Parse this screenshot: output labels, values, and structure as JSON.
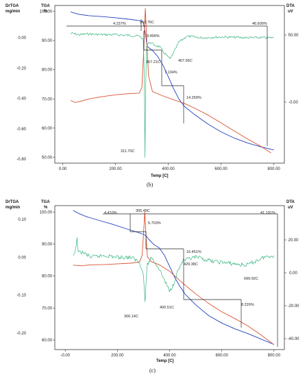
{
  "chart_data": [
    {
      "type": "line",
      "caption": "(b)",
      "axis_labels": {
        "drtga": "DrTGA",
        "drtga_unit": "mg/min",
        "tga": "TGA",
        "tga_unit": "%",
        "dta": "DTA",
        "dta_unit": "uV",
        "x": "Temp [C]"
      },
      "x_ticks": [
        "0.00",
        "200.00",
        "400.00",
        "600.00",
        "800.00"
      ],
      "x_tick_values": [
        0,
        200,
        400,
        600,
        800
      ],
      "xlim": [
        -30,
        840
      ],
      "tga_ticks": [
        "100.00",
        "90.00",
        "80.00",
        "70.00",
        "60.00",
        "50.00"
      ],
      "tga_tick_values": [
        100,
        90,
        80,
        70,
        60,
        50
      ],
      "tga_lim": [
        48,
        102
      ],
      "drtga_ticks": [
        "0.00",
        "-0.20",
        "-0.40",
        "-0.60",
        "-0.80"
      ],
      "drtga_tick_values": [
        0.0,
        -0.2,
        -0.4,
        -0.6,
        -0.8
      ],
      "dta_ticks": [
        "50.00",
        "-0.00"
      ],
      "dta_tick_values": [
        50,
        0
      ],
      "annotations": [
        {
          "text": "4.237%",
          "kind": "step"
        },
        {
          "text": "312.76C",
          "kind": "peak"
        },
        {
          "text": "9.496%",
          "kind": "step"
        },
        {
          "text": "367.21C",
          "kind": "peak"
        },
        {
          "text": "407.66C",
          "kind": "peak"
        },
        {
          "text": "7.134%",
          "kind": "step"
        },
        {
          "text": "14.269%",
          "kind": "step"
        },
        {
          "text": "311.70C",
          "kind": "peak"
        },
        {
          "text": "46.609%",
          "kind": "step"
        }
      ],
      "series": [
        {
          "key": "tga",
          "color": "#1f3fbf",
          "x": [
            30,
            60,
            100,
            150,
            200,
            250,
            290,
            305,
            312,
            320,
            340,
            360,
            380,
            400,
            420,
            440,
            460,
            500,
            550,
            600,
            650,
            700,
            750,
            800
          ],
          "y": [
            99.8,
            99.0,
            98.5,
            98.2,
            97.8,
            97.3,
            96.8,
            96.4,
            93.0,
            88.0,
            86.6,
            84.5,
            81.5,
            77.6,
            73.5,
            70.0,
            67.5,
            64.6,
            61.4,
            58.7,
            56.6,
            54.9,
            53.6,
            52.5
          ]
        },
        {
          "key": "dta",
          "color": "#d9502e",
          "x": [
            30,
            45,
            60,
            100,
            150,
            200,
            250,
            290,
            300,
            306,
            311,
            313,
            316,
            325,
            340,
            380,
            420,
            460,
            500,
            550,
            600,
            650,
            700,
            750,
            790
          ],
          "y": [
            69.5,
            68.8,
            69.0,
            70.0,
            70.8,
            71.4,
            71.8,
            72.0,
            74.0,
            85.0,
            97.0,
            101.0,
            95.0,
            78.0,
            72.5,
            71.0,
            69.7,
            68.5,
            66.8,
            64.5,
            61.8,
            59.0,
            56.3,
            53.8,
            51.5
          ]
        },
        {
          "key": "drtga",
          "color": "#2fb37a",
          "x": [
            30,
            60,
            100,
            150,
            200,
            250,
            290,
            305,
            309,
            311.7,
            314,
            318,
            330,
            350,
            367,
            380,
            395,
            407,
            420,
            440,
            470,
            520,
            600,
            700,
            800
          ],
          "y": [
            0.03,
            0.02,
            0.025,
            0.02,
            0.02,
            0.015,
            0.01,
            -0.01,
            -0.25,
            -0.79,
            -0.35,
            -0.05,
            -0.03,
            -0.05,
            -0.06,
            -0.09,
            -0.12,
            -0.14,
            -0.1,
            -0.03,
            0.01,
            0.0,
            0.005,
            0.0,
            0.0
          ]
        }
      ]
    },
    {
      "type": "line",
      "caption": "(c)",
      "axis_labels": {
        "drtga": "DrTGA",
        "drtga_unit": "mg/min",
        "tga": "TGA",
        "tga_unit": "%",
        "dta": "DTA",
        "dta_unit": "uV",
        "x": "Temp [C]"
      },
      "x_ticks": [
        "-0.00",
        "200.00",
        "400.00",
        "600.00",
        "800.00"
      ],
      "x_tick_values": [
        0,
        200,
        400,
        600,
        800
      ],
      "xlim": [
        -40,
        840
      ],
      "tga_ticks": [
        "100.00",
        "90.00",
        "80.00",
        "70.00",
        "60.00"
      ],
      "tga_tick_values": [
        100,
        90,
        80,
        70,
        60
      ],
      "tga_lim": [
        57,
        102
      ],
      "drtga_ticks": [
        "0.10",
        "0.00",
        "-0.10",
        "-0.20"
      ],
      "drtga_tick_values": [
        0.1,
        0.0,
        -0.1,
        -0.2
      ],
      "dta_ticks": [
        "20.00",
        "0.00",
        "-20.00",
        "-40.00"
      ],
      "dta_tick_values": [
        20,
        0,
        -20,
        -40
      ],
      "annotations": [
        {
          "text": "4.410%",
          "kind": "step"
        },
        {
          "text": "305.49C",
          "kind": "peak"
        },
        {
          "text": "5.703%",
          "kind": "step"
        },
        {
          "text": "16.451%",
          "kind": "step"
        },
        {
          "text": "429.38C",
          "kind": "peak"
        },
        {
          "text": "699.92C",
          "kind": "peak"
        },
        {
          "text": "306.14C",
          "kind": "peak"
        },
        {
          "text": "400.51C",
          "kind": "peak"
        },
        {
          "text": "8.226%",
          "kind": "step"
        },
        {
          "text": "41.191%",
          "kind": "step"
        }
      ],
      "series": [
        {
          "key": "tga",
          "color": "#1f3fbf",
          "x": [
            30,
            50,
            80,
            120,
            180,
            240,
            280,
            300,
            310,
            320,
            340,
            360,
            380,
            400,
            420,
            440,
            460,
            500,
            550,
            600,
            650,
            700,
            750,
            800
          ],
          "y": [
            100.5,
            99.6,
            98.6,
            97.6,
            96.2,
            94.6,
            93.6,
            93.0,
            92.6,
            91.5,
            89.8,
            88.8,
            86.5,
            83.0,
            79.5,
            76.7,
            74.3,
            71.0,
            67.6,
            65.3,
            63.5,
            62.0,
            60.3,
            58.6
          ]
        },
        {
          "key": "dta",
          "color": "#d9502e",
          "x": [
            30,
            60,
            100,
            150,
            200,
            250,
            285,
            295,
            300,
            305,
            310,
            315,
            330,
            360,
            400,
            450,
            500,
            550,
            600,
            650,
            700,
            750,
            800
          ],
          "y": [
            83.4,
            83.2,
            83.5,
            83.6,
            83.8,
            84.0,
            84.4,
            86.5,
            93.0,
            100.0,
            92.0,
            86.0,
            84.5,
            83.5,
            81.5,
            77.8,
            74.4,
            71.4,
            68.8,
            66.7,
            64.4,
            61.6,
            58.5
          ]
        },
        {
          "key": "drtga",
          "color": "#2fb37a",
          "x": [
            30,
            40,
            45,
            50,
            60,
            100,
            150,
            200,
            250,
            280,
            295,
            300,
            306,
            310,
            315,
            330,
            360,
            380,
            400,
            415,
            429,
            450,
            500,
            560,
            620,
            680,
            700,
            760,
            800
          ],
          "y": [
            0.0,
            0.02,
            0.05,
            0.01,
            0.015,
            0.0,
            0.005,
            0.0,
            0.0,
            -0.01,
            -0.03,
            -0.05,
            -0.12,
            -0.06,
            -0.02,
            0.0,
            -0.03,
            -0.06,
            -0.09,
            -0.07,
            -0.04,
            -0.01,
            0.0,
            -0.01,
            -0.015,
            -0.02,
            -0.02,
            0.0,
            0.005
          ]
        }
      ]
    }
  ]
}
